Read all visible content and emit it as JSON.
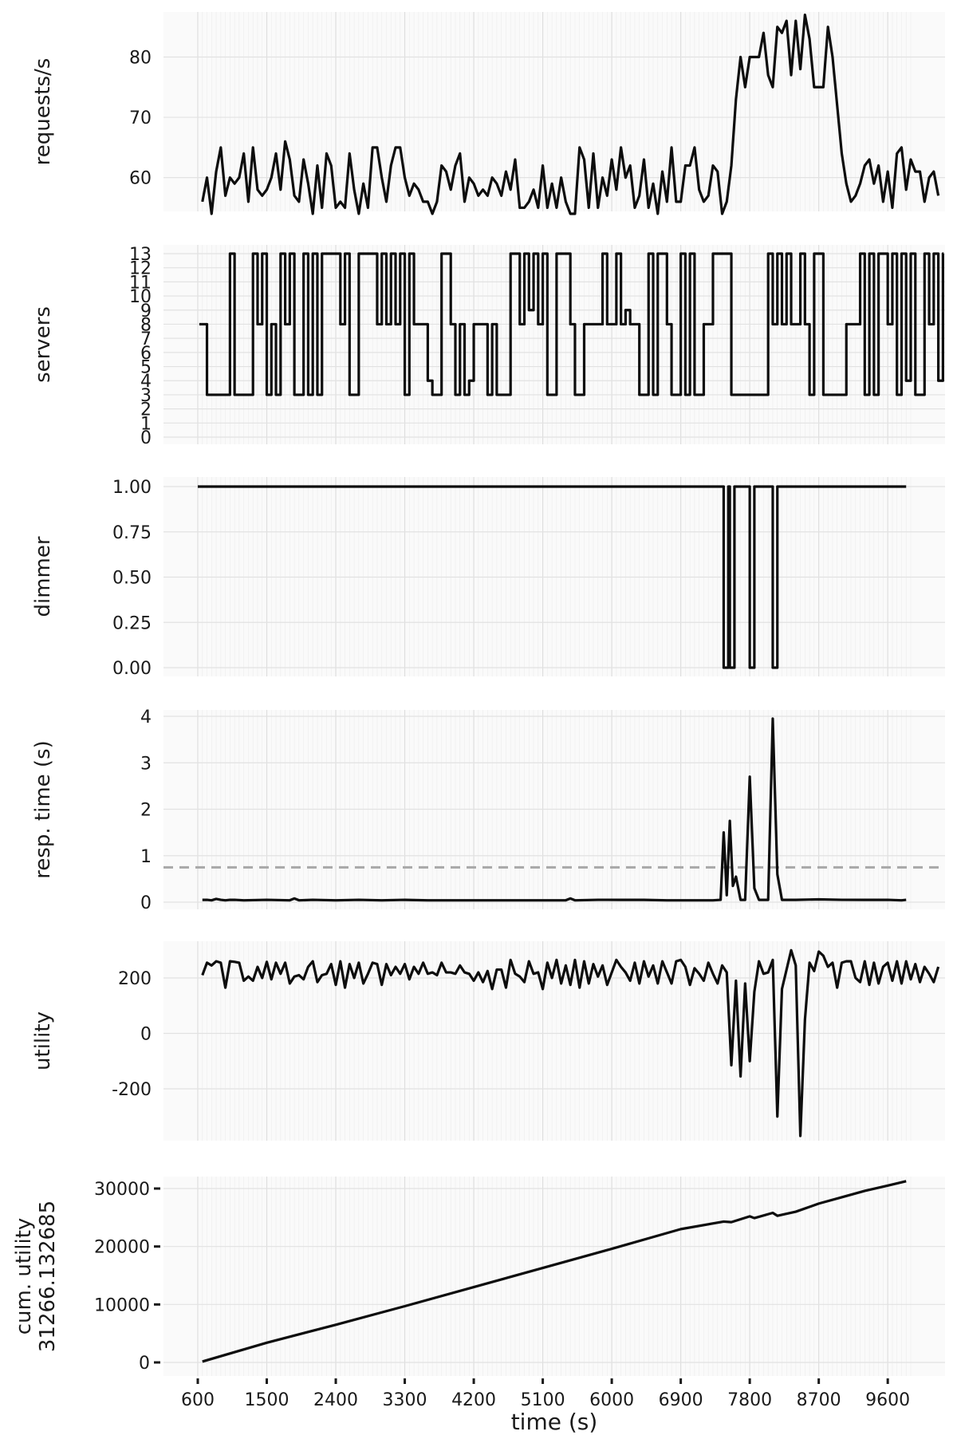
{
  "chart_data": [
    {
      "type": "line",
      "ylabel": "requests/s",
      "yticks": [
        60,
        70,
        80
      ],
      "ylim": [
        54,
        88
      ],
      "xlim": [
        600,
        9900
      ],
      "xticks": [
        600,
        1500,
        2400,
        3300,
        4200,
        5100,
        6000,
        6900,
        7800,
        8700,
        9600
      ],
      "x_step": 60,
      "x_start": 660,
      "values": [
        56,
        60,
        54,
        61,
        65,
        57,
        60,
        59,
        60,
        64,
        56,
        65,
        58,
        57,
        58,
        60,
        64,
        58,
        66,
        63,
        57,
        56,
        63,
        59,
        54,
        62,
        55,
        64,
        62,
        55,
        56,
        55,
        64,
        58,
        54,
        59,
        55,
        65,
        65,
        60,
        56,
        62,
        65,
        65,
        60,
        57,
        59,
        58,
        56,
        56,
        54,
        56,
        62,
        61,
        58,
        62,
        64,
        56,
        60,
        59,
        57,
        58,
        57,
        60,
        59,
        57,
        61,
        58,
        63,
        55,
        55,
        56,
        58,
        55,
        62,
        55,
        59,
        55,
        60,
        56,
        54,
        54,
        65,
        63,
        55,
        64,
        55,
        60,
        57,
        63,
        58,
        65,
        60,
        62,
        55,
        57,
        63,
        55,
        59,
        54,
        61,
        56,
        65,
        56,
        56,
        62,
        62,
        65,
        58,
        56,
        57,
        62,
        61,
        54,
        56,
        62,
        73,
        80,
        75,
        80,
        80,
        80,
        84,
        77,
        75,
        85,
        84,
        86,
        77,
        86,
        78,
        87,
        83,
        75,
        75,
        75,
        85,
        80,
        72,
        64,
        59,
        56,
        57,
        59,
        62,
        63,
        59,
        62,
        56,
        61,
        55,
        64,
        65,
        58,
        63,
        61,
        61,
        56,
        60,
        61,
        57
      ],
      "grid": true
    },
    {
      "type": "line",
      "ylabel": "servers",
      "yticks": [
        0,
        1,
        2,
        3,
        4,
        5,
        6,
        7,
        8,
        9,
        10,
        11,
        12,
        13
      ],
      "ylim": [
        0,
        13.5
      ],
      "xlim": [
        600,
        9900
      ],
      "x_step": 60,
      "x_start": 660,
      "step": true,
      "values": [
        8,
        3,
        3,
        3,
        3,
        3,
        13,
        3,
        3,
        3,
        3,
        13,
        8,
        13,
        3,
        8,
        3,
        13,
        8,
        13,
        3,
        3,
        13,
        3,
        13,
        3,
        13,
        13,
        13,
        13,
        8,
        13,
        3,
        3,
        13,
        13,
        13,
        13,
        8,
        13,
        8,
        13,
        8,
        13,
        3,
        13,
        8,
        8,
        8,
        4,
        3,
        3,
        13,
        13,
        8,
        3,
        8,
        3,
        4,
        8,
        8,
        8,
        3,
        8,
        3,
        3,
        3,
        13,
        13,
        8,
        13,
        9,
        13,
        8,
        13,
        3,
        3,
        13,
        13,
        13,
        8,
        3,
        3,
        8,
        8,
        8,
        8,
        13,
        8,
        8,
        13,
        8,
        9,
        8,
        8,
        3,
        3,
        13,
        3,
        13,
        13,
        8,
        3,
        3,
        13,
        3,
        13,
        3,
        3,
        8,
        8,
        13,
        13,
        13,
        13,
        3,
        3,
        3,
        3,
        3,
        3,
        3,
        3,
        13,
        8,
        13,
        8,
        13,
        8,
        8,
        13,
        8,
        3,
        13,
        13,
        3,
        3,
        3,
        3,
        3,
        8,
        8,
        8,
        13,
        3,
        13,
        3,
        13,
        13,
        8,
        13,
        3,
        13,
        4,
        13,
        3,
        3,
        13,
        8,
        13,
        4,
        13
      ],
      "grid": true
    },
    {
      "type": "line",
      "ylabel": "dimmer",
      "yticks": [
        "0.00",
        "0.25",
        "0.50",
        "0.75",
        "1.00"
      ],
      "ylim": [
        -0.05,
        1.05
      ],
      "xlim": [
        600,
        9900
      ],
      "step": true,
      "segments": [
        [
          600,
          1
        ],
        [
          7460,
          1
        ],
        [
          7460,
          0
        ],
        [
          7520,
          0
        ],
        [
          7520,
          1
        ],
        [
          7540,
          1
        ],
        [
          7540,
          0
        ],
        [
          7600,
          0
        ],
        [
          7600,
          1
        ],
        [
          7800,
          1
        ],
        [
          7800,
          0
        ],
        [
          7860,
          0
        ],
        [
          7860,
          1
        ],
        [
          8100,
          1
        ],
        [
          8100,
          0
        ],
        [
          8160,
          0
        ],
        [
          8160,
          1
        ],
        [
          9840,
          1
        ]
      ],
      "grid": true
    },
    {
      "type": "line",
      "ylabel": "resp. time (s)",
      "yticks": [
        0,
        1,
        2,
        3,
        4
      ],
      "ylim": [
        0,
        4.1
      ],
      "xlim": [
        600,
        9900
      ],
      "reference_line": 0.75,
      "points": [
        [
          660,
          0.05
        ],
        [
          720,
          0.05
        ],
        [
          780,
          0.04
        ],
        [
          840,
          0.07
        ],
        [
          900,
          0.05
        ],
        [
          960,
          0.04
        ],
        [
          1020,
          0.05
        ],
        [
          1080,
          0.05
        ],
        [
          1200,
          0.04
        ],
        [
          1500,
          0.05
        ],
        [
          1800,
          0.04
        ],
        [
          1860,
          0.08
        ],
        [
          1920,
          0.04
        ],
        [
          2100,
          0.05
        ],
        [
          2400,
          0.04
        ],
        [
          2700,
          0.05
        ],
        [
          3000,
          0.04
        ],
        [
          3300,
          0.05
        ],
        [
          3600,
          0.04
        ],
        [
          3900,
          0.04
        ],
        [
          4200,
          0.04
        ],
        [
          4500,
          0.04
        ],
        [
          4800,
          0.04
        ],
        [
          5100,
          0.04
        ],
        [
          5400,
          0.04
        ],
        [
          5460,
          0.08
        ],
        [
          5520,
          0.04
        ],
        [
          5820,
          0.05
        ],
        [
          6120,
          0.05
        ],
        [
          6420,
          0.05
        ],
        [
          6720,
          0.04
        ],
        [
          7020,
          0.04
        ],
        [
          7320,
          0.04
        ],
        [
          7420,
          0.05
        ],
        [
          7460,
          1.5
        ],
        [
          7500,
          0.15
        ],
        [
          7540,
          1.75
        ],
        [
          7580,
          0.35
        ],
        [
          7620,
          0.55
        ],
        [
          7680,
          0.05
        ],
        [
          7740,
          0.05
        ],
        [
          7800,
          2.7
        ],
        [
          7860,
          0.3
        ],
        [
          7920,
          0.05
        ],
        [
          8040,
          0.05
        ],
        [
          8100,
          3.95
        ],
        [
          8160,
          0.6
        ],
        [
          8220,
          0.05
        ],
        [
          8400,
          0.05
        ],
        [
          8700,
          0.06
        ],
        [
          9000,
          0.05
        ],
        [
          9300,
          0.05
        ],
        [
          9600,
          0.05
        ],
        [
          9780,
          0.04
        ],
        [
          9840,
          0.05
        ]
      ],
      "grid": true
    },
    {
      "type": "line",
      "ylabel": "utility",
      "yticks": [
        -200,
        0,
        200
      ],
      "ylim": [
        -380,
        310
      ],
      "xlim": [
        600,
        9900
      ],
      "x_step": 60,
      "x_start": 660,
      "values": [
        210,
        255,
        245,
        260,
        255,
        165,
        260,
        258,
        255,
        190,
        205,
        190,
        240,
        200,
        258,
        195,
        255,
        215,
        255,
        180,
        205,
        210,
        195,
        240,
        260,
        185,
        210,
        215,
        250,
        175,
        260,
        165,
        250,
        200,
        255,
        180,
        215,
        255,
        250,
        175,
        250,
        210,
        240,
        215,
        250,
        195,
        240,
        215,
        255,
        215,
        220,
        210,
        255,
        220,
        220,
        215,
        245,
        220,
        215,
        190,
        220,
        185,
        225,
        160,
        230,
        230,
        165,
        265,
        215,
        205,
        185,
        260,
        215,
        220,
        160,
        255,
        200,
        265,
        180,
        245,
        175,
        265,
        165,
        260,
        180,
        250,
        205,
        245,
        175,
        220,
        265,
        240,
        220,
        190,
        255,
        180,
        260,
        205,
        245,
        180,
        260,
        220,
        180,
        260,
        265,
        240,
        175,
        235,
        215,
        190,
        255,
        215,
        180,
        245,
        220,
        -115,
        190,
        -155,
        180,
        -100,
        150,
        260,
        215,
        220,
        265,
        -300,
        160,
        230,
        300,
        245,
        -370,
        50,
        255,
        225,
        295,
        280,
        240,
        255,
        165,
        255,
        260,
        260,
        200,
        185,
        260,
        175,
        255,
        180,
        240,
        255,
        190,
        260,
        180,
        260,
        195,
        250,
        185,
        240,
        215,
        185,
        240
      ]
    },
    {
      "type": "line",
      "ylabel": "cum. utility\n31266.132685",
      "xlabel": "time (s)",
      "yticks": [
        0,
        10000,
        20000,
        30000
      ],
      "ylim": [
        -900,
        32600
      ],
      "xlim": [
        600,
        9900
      ],
      "xticks": [
        600,
        1500,
        2400,
        3300,
        4200,
        5100,
        6000,
        6900,
        7800,
        8700,
        9600
      ],
      "points": [
        [
          660,
          150
        ],
        [
          1500,
          3400
        ],
        [
          2400,
          6500
        ],
        [
          3300,
          9700
        ],
        [
          4200,
          13000
        ],
        [
          5100,
          16300
        ],
        [
          6000,
          19600
        ],
        [
          6900,
          23000
        ],
        [
          7460,
          24300
        ],
        [
          7560,
          24200
        ],
        [
          7800,
          25200
        ],
        [
          7860,
          24900
        ],
        [
          8100,
          25800
        ],
        [
          8160,
          25300
        ],
        [
          8400,
          26000
        ],
        [
          8700,
          27400
        ],
        [
          9000,
          28500
        ],
        [
          9300,
          29600
        ],
        [
          9600,
          30500
        ],
        [
          9840,
          31266
        ]
      ],
      "grid": true
    }
  ]
}
